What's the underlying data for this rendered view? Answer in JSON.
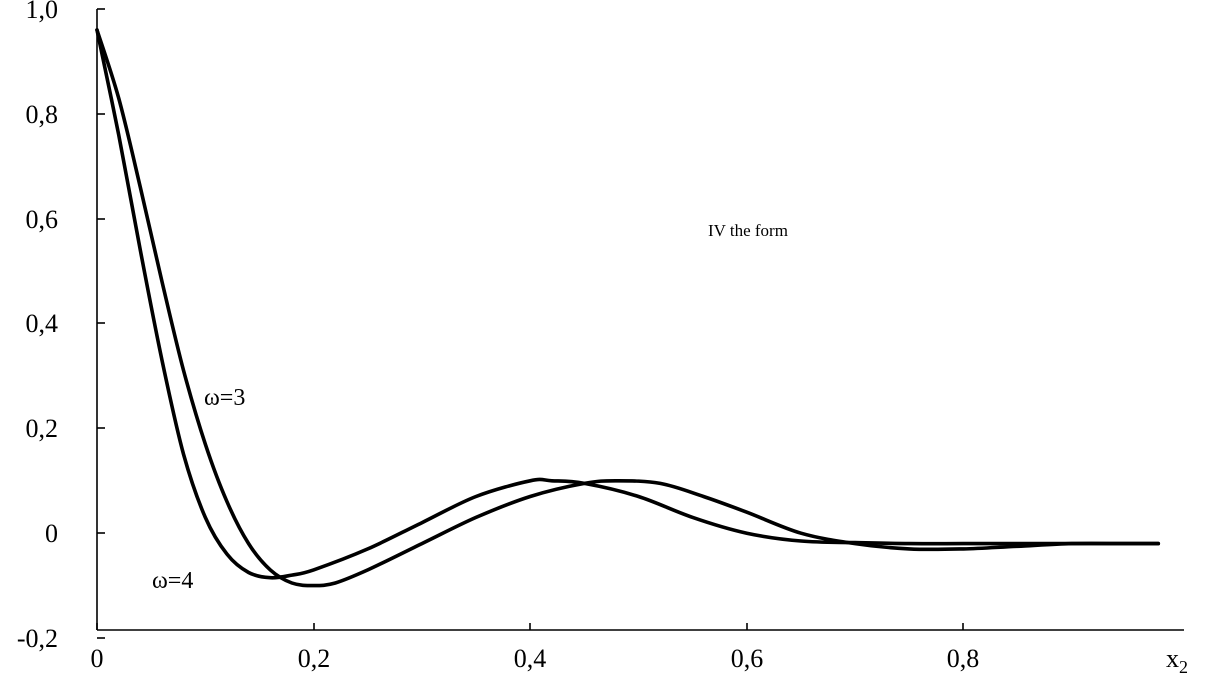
{
  "chart_data": {
    "type": "line",
    "xlabel": "x2",
    "ylabel": "",
    "xlim": [
      0,
      1.0
    ],
    "ylim": [
      -0.2,
      1.0
    ],
    "grid": false,
    "x_ticks": [
      {
        "value": 0,
        "label": "0"
      },
      {
        "value": 0.2,
        "label": "0,2"
      },
      {
        "value": 0.4,
        "label": "0,4"
      },
      {
        "value": 0.6,
        "label": "0,6"
      },
      {
        "value": 0.8,
        "label": "0,8"
      }
    ],
    "y_ticks": [
      {
        "value": -0.2,
        "label": "-0,2"
      },
      {
        "value": 0,
        "label": "0"
      },
      {
        "value": 0.2,
        "label": "0,2"
      },
      {
        "value": 0.4,
        "label": "0,4"
      },
      {
        "value": 0.6,
        "label": "0,6"
      },
      {
        "value": 0.8,
        "label": "0,8"
      },
      {
        "value": 1.0,
        "label": "1,0"
      }
    ],
    "annotations": [
      {
        "text": "IV the form",
        "x": 0.55,
        "y": 0.58
      },
      {
        "text": "ω=3",
        "x": 0.1,
        "y": 0.25
      },
      {
        "text": "ω=4",
        "x": 0.06,
        "y": -0.1
      }
    ],
    "series": [
      {
        "name": "ω=3",
        "x": [
          0,
          0.02,
          0.04,
          0.06,
          0.08,
          0.1,
          0.12,
          0.14,
          0.16,
          0.18,
          0.2,
          0.22,
          0.25,
          0.3,
          0.35,
          0.4,
          0.45,
          0.48,
          0.52,
          0.56,
          0.6,
          0.65,
          0.7,
          0.75,
          0.8,
          0.85,
          0.9,
          0.95,
          0.98
        ],
        "y": [
          0.96,
          0.83,
          0.66,
          0.48,
          0.31,
          0.17,
          0.06,
          -0.02,
          -0.07,
          -0.095,
          -0.1,
          -0.095,
          -0.07,
          -0.02,
          0.03,
          0.07,
          0.095,
          0.1,
          0.095,
          0.07,
          0.04,
          0.0,
          -0.02,
          -0.03,
          -0.03,
          -0.025,
          -0.02,
          -0.02,
          -0.02
        ]
      },
      {
        "name": "ω=4",
        "x": [
          0,
          0.02,
          0.04,
          0.06,
          0.08,
          0.1,
          0.12,
          0.14,
          0.16,
          0.18,
          0.2,
          0.25,
          0.3,
          0.35,
          0.4,
          0.42,
          0.45,
          0.5,
          0.55,
          0.6,
          0.65,
          0.7,
          0.75,
          0.8,
          0.85,
          0.9,
          0.95,
          0.98
        ],
        "y": [
          0.96,
          0.76,
          0.54,
          0.33,
          0.15,
          0.03,
          -0.04,
          -0.075,
          -0.085,
          -0.08,
          -0.07,
          -0.03,
          0.02,
          0.07,
          0.1,
          0.1,
          0.095,
          0.07,
          0.03,
          0.0,
          -0.015,
          -0.018,
          -0.02,
          -0.02,
          -0.02,
          -0.02,
          -0.02,
          -0.02
        ]
      }
    ]
  }
}
